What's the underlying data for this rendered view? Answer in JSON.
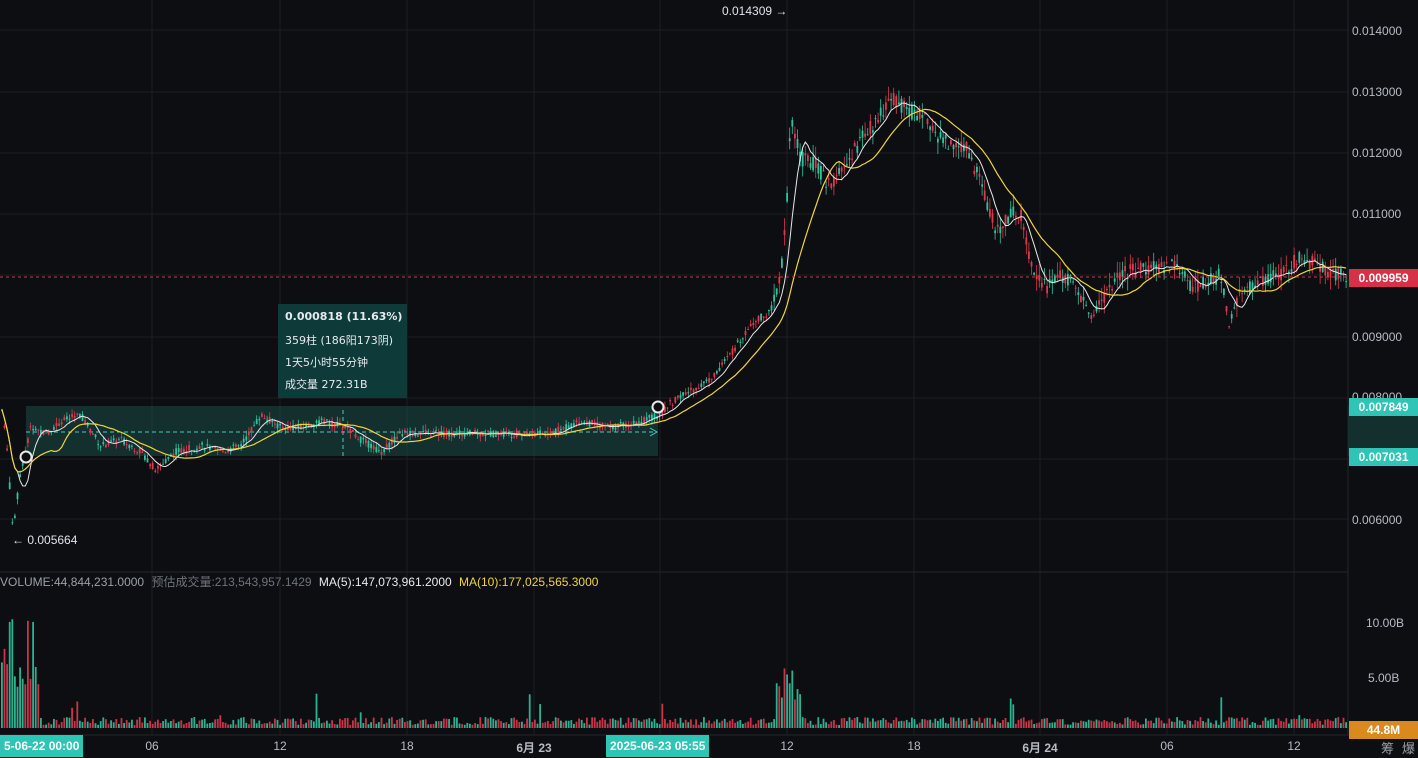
{
  "chart_data": {
    "type": "candlestick",
    "price_axis": {
      "ticks": [
        "0.014000",
        "0.013000",
        "0.012000",
        "0.011000",
        "0.009000",
        "0.008000",
        "0.006000"
      ],
      "current_price": "0.009959",
      "measure_top": "0.007849",
      "measure_bottom": "0.007031",
      "range": [
        0.0054,
        0.0143
      ]
    },
    "volume_axis": {
      "ticks": [
        "10.00B",
        "5.00B"
      ],
      "current": "44.8M"
    },
    "time_axis": {
      "labels": [
        "5-06-22 00:00",
        "06",
        "12",
        "18",
        "6月 23",
        "2025-06-23 05:55",
        "12",
        "18",
        "6月 24",
        "06",
        "12"
      ]
    },
    "extremes": {
      "high": "0.014309",
      "low": "0.005664"
    },
    "volume_legend": {
      "volume": "VOLUME:44,844,231.0000",
      "estimated": "预估成交量:213,543,957.1429",
      "ma5": "MA(5):147,073,961.2000",
      "ma10": "MA(10):177,025,565.3000"
    },
    "measure_tooltip": {
      "line1": "0.000818 (11.63%)",
      "line2": "359柱 (186阳173阴)",
      "line3": "1天5小时55分钟",
      "line4": "成交量 272.31B"
    },
    "price_path": [
      [
        0,
        0.0079
      ],
      [
        6,
        0.0072
      ],
      [
        12,
        0.0058
      ],
      [
        20,
        0.0068
      ],
      [
        30,
        0.0075
      ],
      [
        45,
        0.0074
      ],
      [
        60,
        0.0076
      ],
      [
        80,
        0.0077
      ],
      [
        100,
        0.0072
      ],
      [
        120,
        0.0073
      ],
      [
        140,
        0.0071
      ],
      [
        155,
        0.0068
      ],
      [
        175,
        0.0071
      ],
      [
        200,
        0.0072
      ],
      [
        220,
        0.0071
      ],
      [
        240,
        0.0072
      ],
      [
        260,
        0.0077
      ],
      [
        280,
        0.0075
      ],
      [
        300,
        0.0075
      ],
      [
        320,
        0.0076
      ],
      [
        345,
        0.0075
      ],
      [
        360,
        0.0073
      ],
      [
        380,
        0.0071
      ],
      [
        400,
        0.0074
      ],
      [
        430,
        0.0074
      ],
      [
        460,
        0.0074
      ],
      [
        490,
        0.0074
      ],
      [
        520,
        0.0074
      ],
      [
        550,
        0.0074
      ],
      [
        580,
        0.0076
      ],
      [
        610,
        0.0075
      ],
      [
        640,
        0.0076
      ],
      [
        658,
        0.0077
      ],
      [
        670,
        0.0079
      ],
      [
        690,
        0.0081
      ],
      [
        710,
        0.0083
      ],
      [
        730,
        0.0087
      ],
      [
        750,
        0.0092
      ],
      [
        770,
        0.0094
      ],
      [
        780,
        0.01
      ],
      [
        786,
        0.0112
      ],
      [
        790,
        0.0125
      ],
      [
        800,
        0.0119
      ],
      [
        815,
        0.0118
      ],
      [
        830,
        0.0114
      ],
      [
        845,
        0.0118
      ],
      [
        860,
        0.0122
      ],
      [
        875,
        0.0125
      ],
      [
        890,
        0.0129
      ],
      [
        905,
        0.0127
      ],
      [
        920,
        0.0126
      ],
      [
        935,
        0.0123
      ],
      [
        950,
        0.0121
      ],
      [
        965,
        0.0121
      ],
      [
        980,
        0.0115
      ],
      [
        995,
        0.0107
      ],
      [
        1010,
        0.011
      ],
      [
        1020,
        0.011
      ],
      [
        1030,
        0.0102
      ],
      [
        1045,
        0.0098
      ],
      [
        1060,
        0.01
      ],
      [
        1075,
        0.0098
      ],
      [
        1090,
        0.0093
      ],
      [
        1105,
        0.0097
      ],
      [
        1120,
        0.01
      ],
      [
        1140,
        0.0101
      ],
      [
        1160,
        0.0101
      ],
      [
        1175,
        0.0102
      ],
      [
        1190,
        0.0098
      ],
      [
        1210,
        0.0099
      ],
      [
        1220,
        0.01
      ],
      [
        1228,
        0.0092
      ],
      [
        1240,
        0.0097
      ],
      [
        1260,
        0.0099
      ],
      [
        1280,
        0.01
      ],
      [
        1300,
        0.0103
      ],
      [
        1320,
        0.0101
      ],
      [
        1340,
        0.01
      ]
    ]
  }
}
